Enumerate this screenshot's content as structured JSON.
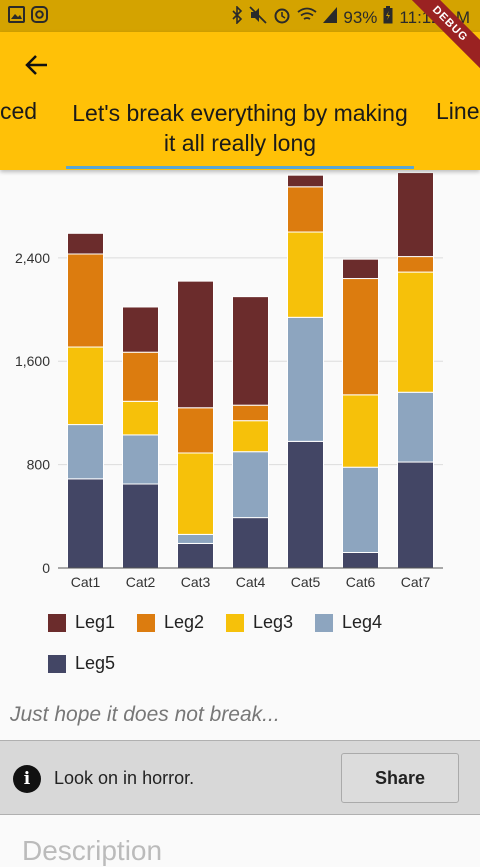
{
  "status_bar": {
    "battery": "93%",
    "time": "11:12 AM"
  },
  "debug_label": "DEBUG",
  "tabs": {
    "left": "ced",
    "center": "Let's break everything by making it all really long",
    "right": "Line"
  },
  "chart_data": {
    "type": "bar",
    "stacked": true,
    "categories": [
      "Cat1",
      "Cat2",
      "Cat3",
      "Cat4",
      "Cat5",
      "Cat6",
      "Cat7"
    ],
    "series": [
      {
        "name": "Leg5",
        "color": "#434665",
        "values": [
          690,
          650,
          190,
          390,
          980,
          120,
          820
        ]
      },
      {
        "name": "Leg4",
        "color": "#8da5bf",
        "values": [
          420,
          380,
          70,
          510,
          960,
          660,
          540
        ]
      },
      {
        "name": "Leg3",
        "color": "#f6c10a",
        "values": [
          600,
          260,
          630,
          240,
          660,
          560,
          930
        ]
      },
      {
        "name": "Leg2",
        "color": "#dc7c0f",
        "values": [
          720,
          380,
          350,
          120,
          350,
          900,
          120
        ]
      },
      {
        "name": "Leg1",
        "color": "#6b2c2c",
        "values": [
          160,
          350,
          980,
          840,
          90,
          150,
          650
        ]
      }
    ],
    "y_ticks": [
      "0",
      "800",
      "1,600",
      "2,400"
    ],
    "ylim": [
      0,
      3080
    ],
    "grid": true,
    "legend_order": [
      "Leg1",
      "Leg2",
      "Leg3",
      "Leg4",
      "Leg5"
    ]
  },
  "note": "Just hope it does not break...",
  "banner": {
    "text": "Look on in horror.",
    "button": "Share"
  },
  "description_heading": "Description"
}
